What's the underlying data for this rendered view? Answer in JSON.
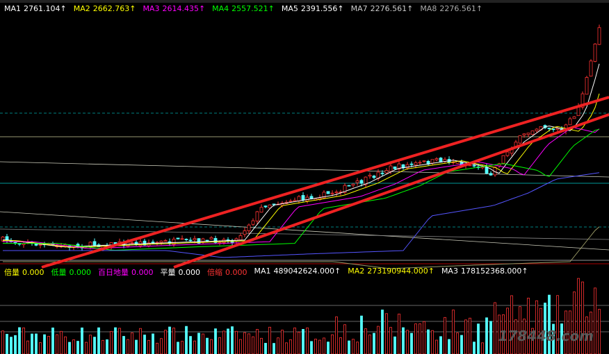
{
  "main_legend": [
    {
      "label": "MA1",
      "value": "2761.104↑"
    },
    {
      "label": "MA2",
      "value": "2662.763↑"
    },
    {
      "label": "MA3",
      "value": "2614.435↑"
    },
    {
      "label": "MA4",
      "value": "2557.521↑"
    },
    {
      "label": "MA5",
      "value": "2391.556↑"
    },
    {
      "label": "MA7",
      "value": "2276.561↑"
    },
    {
      "label": "MA8",
      "value": "2276.561↑"
    }
  ],
  "volume_legend": [
    {
      "label": "倍量",
      "value": "0.000"
    },
    {
      "label": "低量",
      "value": "0.000"
    },
    {
      "label": "百日地量",
      "value": "0.000"
    },
    {
      "label": "平量",
      "value": "0.000"
    },
    {
      "label": "倍缩",
      "value": "0.000"
    },
    {
      "label": "MA1",
      "value": "489042624.000↑"
    },
    {
      "label": "MA2",
      "value": "273190944.000↑"
    },
    {
      "label": "MA3",
      "value": "178152368.000↑"
    }
  ],
  "watermark": "178448.com"
}
